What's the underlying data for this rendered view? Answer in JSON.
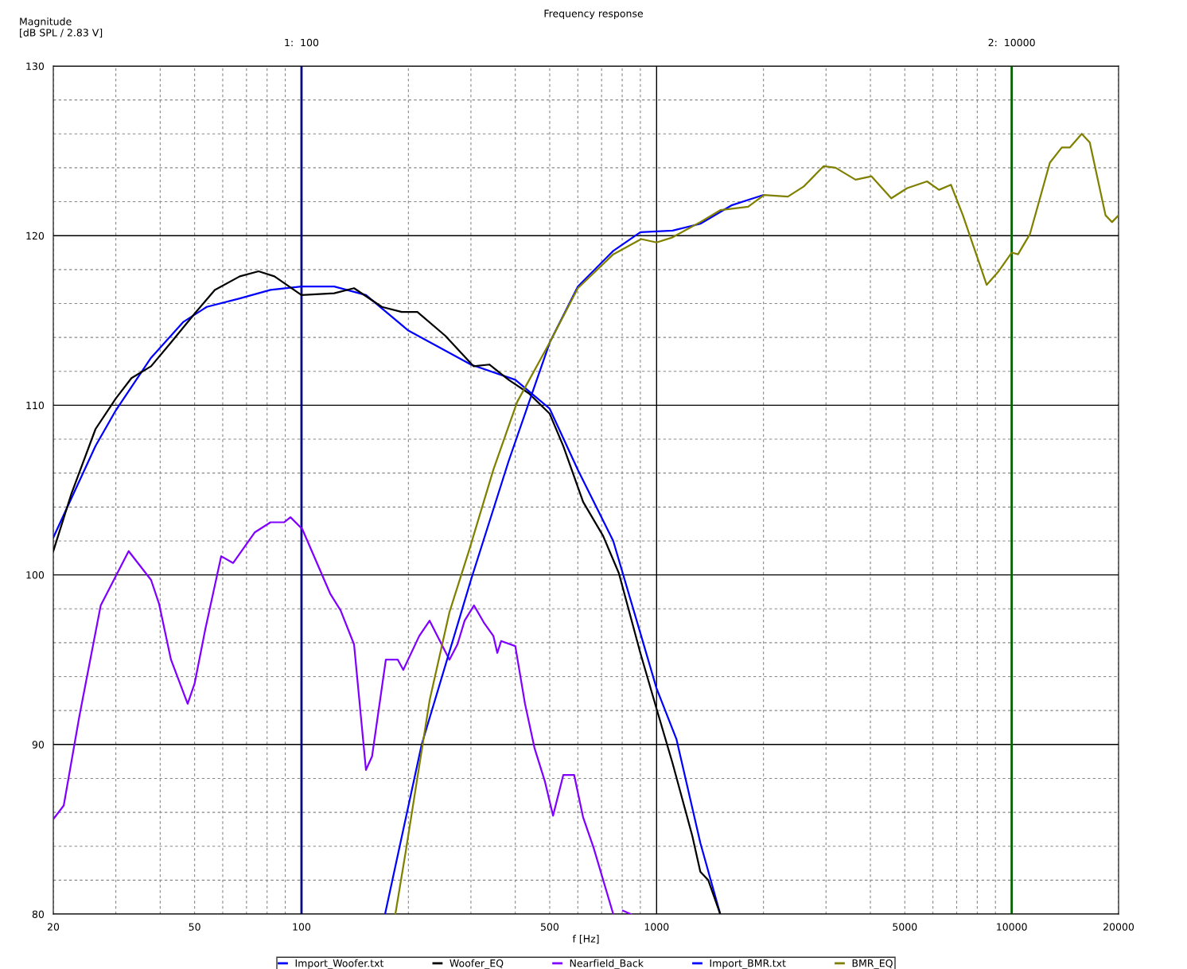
{
  "chart_data": {
    "type": "line",
    "title": "Frequency response",
    "ylabel": "Magnitude\n[dB SPL / 2.83 V]",
    "xlabel": "f [Hz]",
    "log": "x",
    "grid": true,
    "legend": "bottom",
    "marker": "none",
    "line_style": "solid",
    "xlim": [
      20,
      20000
    ],
    "ylim": [
      80,
      130
    ],
    "xticks": [
      20,
      {
        "value": 30,
        "label": null
      },
      {
        "value": 40,
        "label": null
      },
      50,
      {
        "value": 60,
        "label": null
      },
      {
        "value": 70,
        "label": null
      },
      {
        "value": 80,
        "label": null
      },
      {
        "value": 90,
        "label": null
      },
      100,
      {
        "value": 200,
        "label": null
      },
      {
        "value": 300,
        "label": null
      },
      {
        "value": 400,
        "label": null
      },
      500,
      {
        "value": 600,
        "label": null
      },
      {
        "value": 700,
        "label": null
      },
      {
        "value": 800,
        "label": null
      },
      {
        "value": 900,
        "label": null
      },
      1000,
      {
        "value": 2000,
        "label": null
      },
      {
        "value": 3000,
        "label": null
      },
      {
        "value": 4000,
        "label": null
      },
      5000,
      {
        "value": 6000,
        "label": null
      },
      {
        "value": 7000,
        "label": null
      },
      {
        "value": 8000,
        "label": null
      },
      {
        "value": 9000,
        "label": null
      },
      10000,
      20000
    ],
    "yticks": [
      80,
      {
        "value": 82,
        "label": null
      },
      {
        "value": 84,
        "label": null
      },
      {
        "value": 86,
        "label": null
      },
      {
        "value": 88,
        "label": null
      },
      90,
      {
        "value": 92,
        "label": null
      },
      {
        "value": 94,
        "label": null
      },
      {
        "value": 96,
        "label": null
      },
      {
        "value": 98,
        "label": null
      },
      100,
      {
        "value": 102,
        "label": null
      },
      {
        "value": 104,
        "label": null
      },
      {
        "value": 106,
        "label": null
      },
      {
        "value": 108,
        "label": null
      },
      110,
      {
        "value": 112,
        "label": null
      },
      {
        "value": 114,
        "label": null
      },
      {
        "value": 116,
        "label": null
      },
      {
        "value": 118,
        "label": null
      },
      120,
      {
        "value": 122,
        "label": null
      },
      {
        "value": 124,
        "label": null
      },
      {
        "value": 126,
        "label": null
      },
      {
        "value": 128,
        "label": null
      },
      130
    ],
    "ref_lines": [
      {
        "axis": "x",
        "value": 100,
        "label": "1:  100",
        "color": "#000080"
      },
      {
        "axis": "x",
        "value": 10000,
        "label": "2:  10000",
        "color": "#006400"
      }
    ],
    "series": [
      {
        "name": "Import_Woofer.txt",
        "color": "#0000ff",
        "x": [
          20,
          26.3,
          30,
          37.7,
          46.4,
          54.1,
          67,
          81.8,
          100,
          123.6,
          151.9,
          200,
          300,
          400,
          500,
          600,
          755,
          905,
          1000,
          1138,
          1328,
          1511
        ],
        "values": [
          102.2,
          107.6,
          109.7,
          112.8,
          114.9,
          115.8,
          116.3,
          116.8,
          117.0,
          117.0,
          116.5,
          114.4,
          112.4,
          111.5,
          109.8,
          106.2,
          102.0,
          96.4,
          93.3,
          90.3,
          84.2,
          80.0
        ]
      },
      {
        "name": "Woofer_EQ",
        "color": "#000000",
        "x": [
          20,
          22.5,
          26.3,
          30,
          33.2,
          37.7,
          42.9,
          50,
          57,
          67,
          75.7,
          83.9,
          100,
          123.6,
          140.6,
          168.4,
          191.6,
          212,
          254,
          305,
          338,
          383,
          437,
          500,
          546,
          621,
          707,
          783,
          900,
          1000,
          1109,
          1261,
          1328,
          1398,
          1511
        ],
        "values": [
          101.4,
          104.8,
          108.6,
          110.4,
          111.6,
          112.3,
          113.7,
          115.4,
          116.8,
          117.6,
          117.9,
          117.6,
          116.5,
          116.6,
          116.9,
          115.8,
          115.5,
          115.5,
          114.1,
          112.3,
          112.4,
          111.5,
          110.7,
          109.5,
          107.6,
          104.3,
          102.3,
          100.1,
          95.4,
          92.1,
          88.9,
          84.6,
          82.5,
          82.0,
          80.0
        ]
      },
      {
        "name": "Nearfield_Back",
        "color": "#8000ff",
        "x": [
          20,
          21.4,
          23.7,
          27.2,
          32.6,
          37.7,
          39.7,
          42.9,
          47.8,
          50,
          53.6,
          59.4,
          64.2,
          73.8,
          81.8,
          89.3,
          93.1,
          100.5,
          120.4,
          128.9,
          140.6,
          151.9,
          158,
          172.8,
          186.7,
          193.5,
          214.6,
          229.5,
          261,
          274.9,
          288,
          306,
          326,
          347,
          356,
          365,
          400,
          426,
          453,
          485,
          511,
          546,
          586,
          621,
          665,
          755,
          780,
          804,
          847
        ],
        "values": [
          85.6,
          86.4,
          91.7,
          98.2,
          101.4,
          99.7,
          98.3,
          95.0,
          92.4,
          93.6,
          96.8,
          101.1,
          100.7,
          102.5,
          103.1,
          103.1,
          103.4,
          102.7,
          98.9,
          97.9,
          95.9,
          88.5,
          89.3,
          95.0,
          95.0,
          94.4,
          96.4,
          97.3,
          95.0,
          95.9,
          97.3,
          98.2,
          97.2,
          96.4,
          95.4,
          96.1,
          95.8,
          92.4,
          89.8,
          87.8,
          85.8,
          88.2,
          88.2,
          85.7,
          83.9,
          80.0,
          null,
          80.2,
          80.0
        ]
      },
      {
        "name": "Import_BMR.txt",
        "color": "#0000ff",
        "x": [
          171.9,
          218,
          300,
          383,
          500,
          600,
          755,
          900,
          1109,
          1328,
          1631,
          2000
        ],
        "values": [
          80.0,
          90.0,
          99.7,
          106.7,
          113.7,
          117.0,
          119.1,
          120.2,
          120.3,
          120.7,
          121.8,
          122.4
        ]
      },
      {
        "name": "BMR_EQ",
        "color": "#808000",
        "x": [
          183.8,
          196.6,
          229.5,
          261,
          297,
          347,
          405,
          500,
          600,
          755,
          905,
          1000,
          1109,
          1328,
          1511,
          1810,
          2007,
          2343,
          2597,
          2955,
          3192,
          3633,
          4026,
          4580,
          5077,
          5776,
          6242,
          6744,
          7288,
          8504,
          9190,
          10000,
          10420,
          11260,
          12810,
          13840,
          14590,
          15750,
          16590,
          18380,
          19170,
          20000
        ],
        "values": [
          80.0,
          83.7,
          92.6,
          97.8,
          101.5,
          106.2,
          110.2,
          113.7,
          116.9,
          118.9,
          119.8,
          119.6,
          119.9,
          120.8,
          121.5,
          121.7,
          122.4,
          122.3,
          122.9,
          124.1,
          124.0,
          123.3,
          123.5,
          122.2,
          122.8,
          123.2,
          122.7,
          123.0,
          121.2,
          117.1,
          117.9,
          119.0,
          118.9,
          120.1,
          124.3,
          125.2,
          125.2,
          126.0,
          125.5,
          121.2,
          120.8,
          121.2
        ]
      }
    ]
  }
}
